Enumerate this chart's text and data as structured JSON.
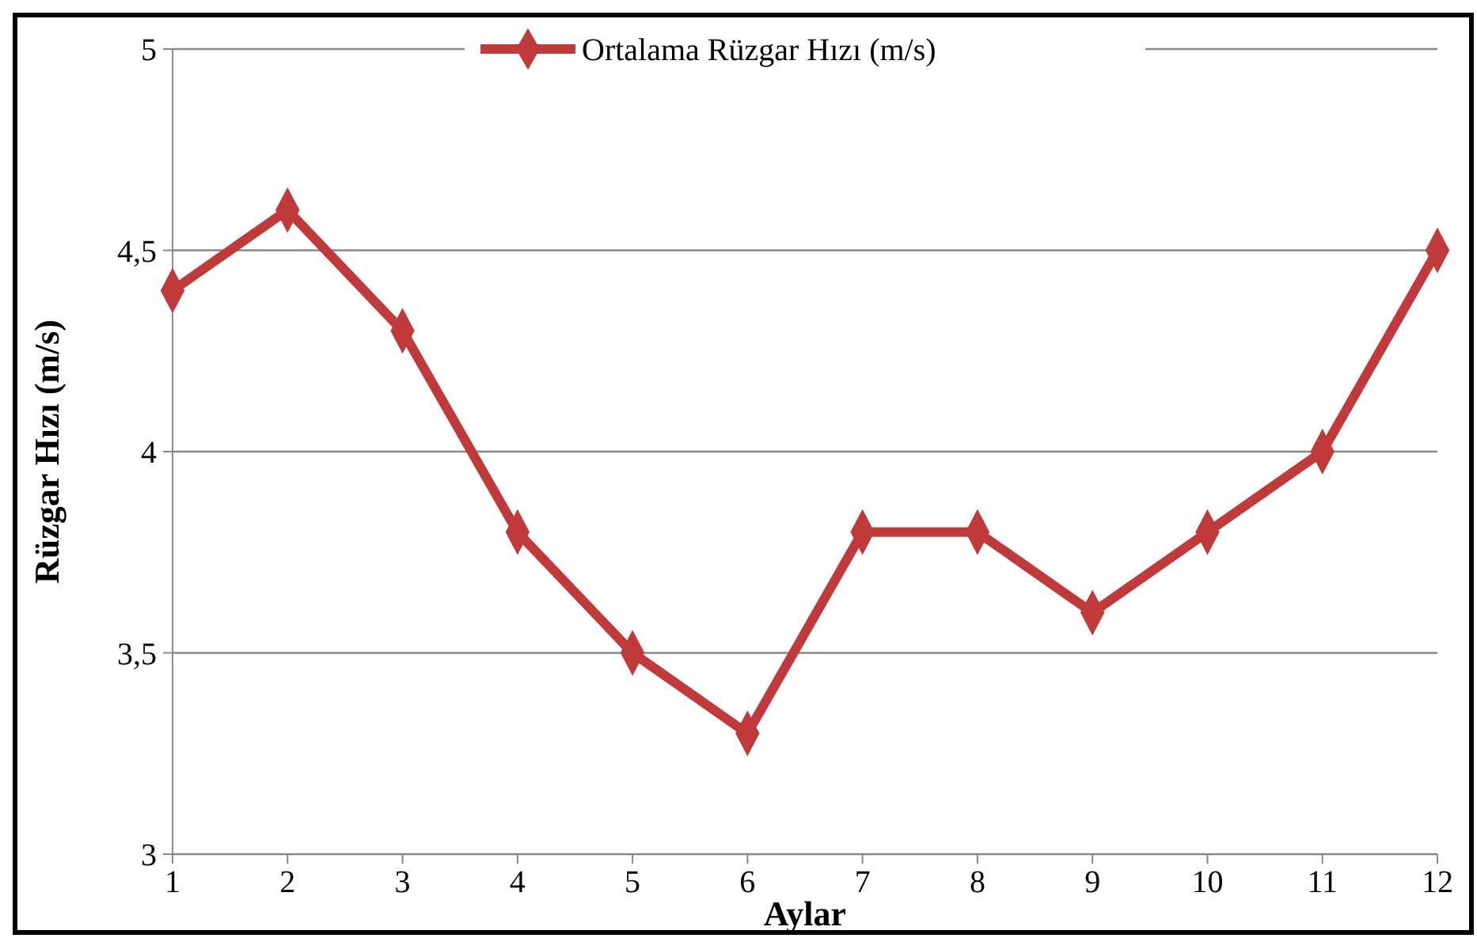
{
  "chart_data": {
    "type": "line",
    "xlabel": "Aylar",
    "ylabel": "Rüzgar Hızı (m/s)",
    "x": [
      1,
      2,
      3,
      4,
      5,
      6,
      7,
      8,
      9,
      10,
      11,
      12
    ],
    "series": [
      {
        "name": "Ortalama Rüzgar Hızı (m/s)",
        "color": "#c0393b",
        "values": [
          4.4,
          4.6,
          4.3,
          3.8,
          3.5,
          3.3,
          3.8,
          3.8,
          3.6,
          3.8,
          4.0,
          4.5
        ]
      }
    ],
    "xlim": [
      1,
      12
    ],
    "xticks": [
      1,
      2,
      3,
      4,
      5,
      6,
      7,
      8,
      9,
      10,
      11,
      12
    ],
    "ylim": [
      3,
      5
    ],
    "yticks": [
      {
        "value": 3,
        "label": "3"
      },
      {
        "value": 3.5,
        "label": "3,5"
      },
      {
        "value": 4,
        "label": "4"
      },
      {
        "value": 4.5,
        "label": "4,5"
      },
      {
        "value": 5,
        "label": "5"
      }
    ],
    "grid": "y",
    "legend": "top",
    "marker": "diamond",
    "line_style": "solid"
  }
}
